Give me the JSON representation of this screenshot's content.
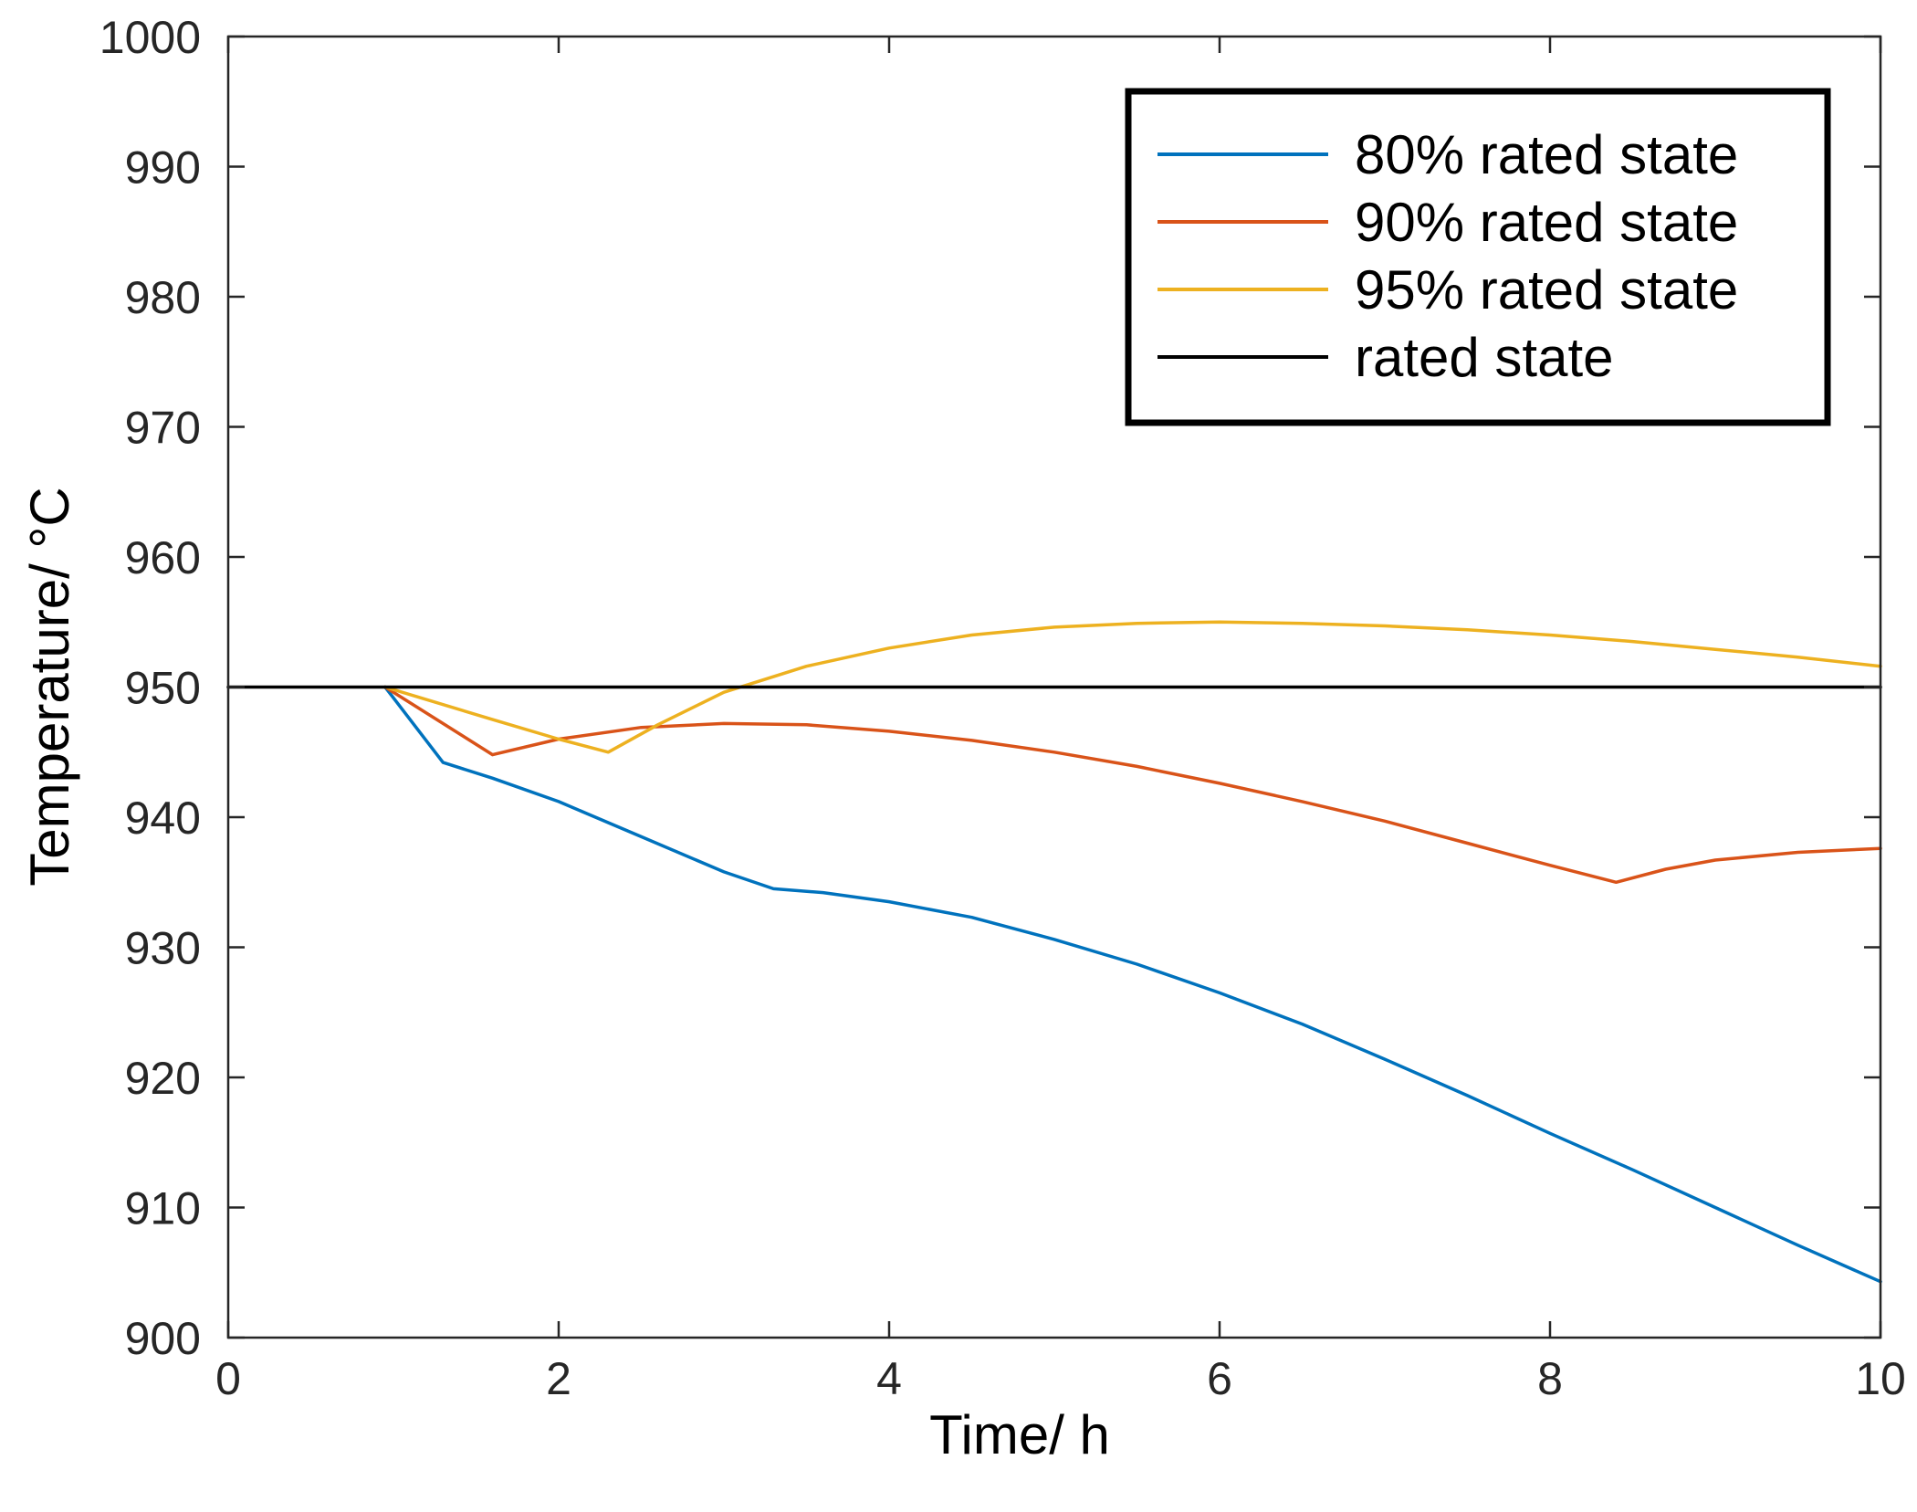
{
  "chart_data": {
    "type": "line",
    "title": "",
    "xlabel": "Time/ h",
    "ylabel": "Temperature/ °C",
    "xlim": [
      0,
      10
    ],
    "ylim": [
      900,
      1000
    ],
    "xticks": [
      0,
      2,
      4,
      6,
      8,
      10
    ],
    "xtick_labels": [
      "0",
      "2",
      "4",
      "6",
      "8",
      "10"
    ],
    "yticks": [
      900,
      910,
      920,
      930,
      940,
      950,
      960,
      970,
      980,
      990,
      1000
    ],
    "ytick_labels": [
      "900",
      "910",
      "920",
      "930",
      "940",
      "950",
      "960",
      "970",
      "980",
      "990",
      "1000"
    ],
    "grid": false,
    "legend_position": "top-right",
    "series": [
      {
        "name": "80% rated state",
        "color": "#0072BD",
        "x": [
          0.95,
          1.3,
          1.6,
          2.0,
          2.5,
          3.0,
          3.3,
          3.6,
          4.0,
          4.5,
          5.0,
          5.5,
          6.0,
          6.5,
          7.0,
          7.5,
          8.0,
          8.5,
          9.0,
          9.5,
          10.0
        ],
        "y": [
          950.0,
          944.2,
          943.0,
          941.2,
          938.5,
          935.8,
          934.5,
          934.2,
          933.5,
          932.3,
          930.6,
          928.7,
          926.5,
          924.1,
          921.4,
          918.6,
          915.7,
          912.9,
          910.0,
          907.1,
          904.3
        ]
      },
      {
        "name": "90% rated state",
        "color": "#D95319",
        "x": [
          0.95,
          1.6,
          2.0,
          2.5,
          3.0,
          3.5,
          4.0,
          4.5,
          5.0,
          5.5,
          6.0,
          6.5,
          7.0,
          7.5,
          8.0,
          8.4,
          8.7,
          9.0,
          9.5,
          10.0
        ],
        "y": [
          950.0,
          944.8,
          946.0,
          946.9,
          947.2,
          947.1,
          946.6,
          945.9,
          945.0,
          943.9,
          942.6,
          941.2,
          939.7,
          938.0,
          936.3,
          935.0,
          936.0,
          936.7,
          937.3,
          937.6
        ]
      },
      {
        "name": "95% rated state",
        "color": "#EDB120",
        "x": [
          0.95,
          1.6,
          2.0,
          2.3,
          2.6,
          3.0,
          3.5,
          4.0,
          4.5,
          5.0,
          5.5,
          6.0,
          6.5,
          7.0,
          7.5,
          8.0,
          8.5,
          9.0,
          9.5,
          10.0
        ],
        "y": [
          950.0,
          947.5,
          946.0,
          945.0,
          947.1,
          949.6,
          951.6,
          953.0,
          954.0,
          954.6,
          954.9,
          955.0,
          954.9,
          954.7,
          954.4,
          954.0,
          953.5,
          952.9,
          952.3,
          951.6
        ]
      },
      {
        "name": "rated state",
        "color": "#000000",
        "x": [
          0,
          10
        ],
        "y": [
          950,
          950
        ]
      }
    ]
  }
}
